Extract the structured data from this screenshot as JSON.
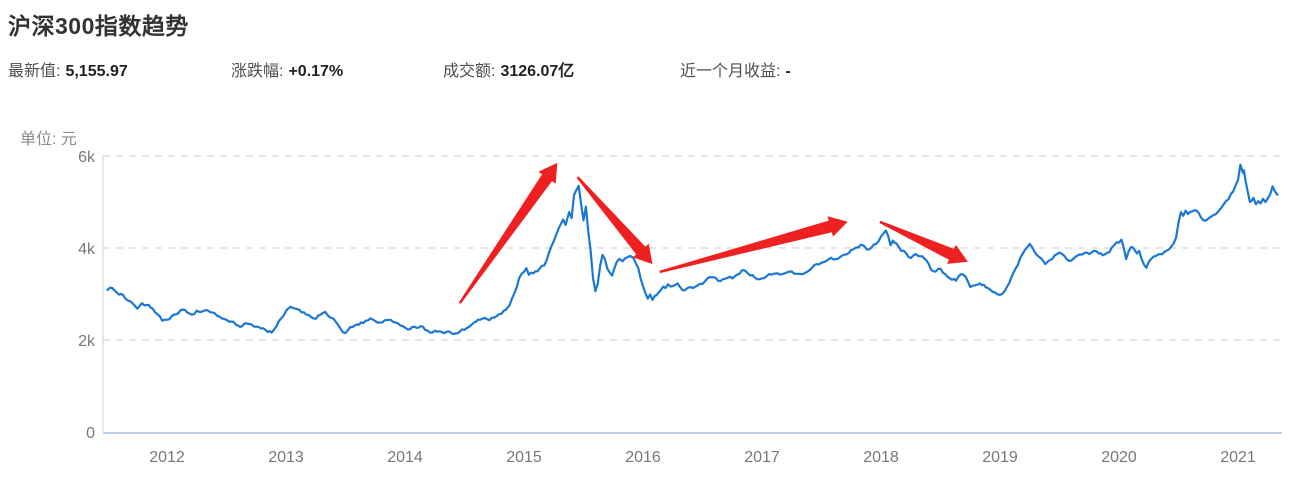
{
  "page": {
    "title": "沪深300指数趋势"
  },
  "stats": [
    {
      "label": "最新值:",
      "value": "5,155.97"
    },
    {
      "label": "涨跌幅:",
      "value": "+0.17%"
    },
    {
      "label": "成交额:",
      "value": "3126.07亿"
    },
    {
      "label": "近一个月收益:",
      "value": "-"
    }
  ],
  "chart_data": {
    "type": "line",
    "title": "沪深300指数趋势",
    "ylabel": "单位: 元",
    "xlabel": "",
    "legend": [],
    "grid": true,
    "xlim": [
      2011.5,
      2021.35
    ],
    "ylim": [
      0,
      6000
    ],
    "x_ticks": [
      "2012",
      "2013",
      "2014",
      "2015",
      "2016",
      "2017",
      "2018",
      "2019",
      "2020",
      "2021"
    ],
    "y_ticks": [
      {
        "value": 0,
        "label": "0"
      },
      {
        "value": 2000,
        "label": "2k"
      },
      {
        "value": 4000,
        "label": "4k"
      },
      {
        "value": 6000,
        "label": "6k"
      }
    ],
    "line_color": "#1b78d2",
    "grid_color": "#cdcdcd",
    "axis_color": "#d0d0d0",
    "baseline_color": "#bcd0e8",
    "tick_color": "#76787b",
    "arrow_color": "#ee2021",
    "series": [
      {
        "name": "沪深300",
        "points": [
          [
            2011.5,
            3090
          ],
          [
            2011.54,
            3130
          ],
          [
            2011.58,
            3030
          ],
          [
            2011.63,
            2980
          ],
          [
            2011.67,
            2860
          ],
          [
            2011.71,
            2800
          ],
          [
            2011.75,
            2680
          ],
          [
            2011.79,
            2800
          ],
          [
            2011.83,
            2760
          ],
          [
            2011.88,
            2680
          ],
          [
            2011.92,
            2560
          ],
          [
            2011.96,
            2420
          ],
          [
            2012.0,
            2440
          ],
          [
            2012.04,
            2520
          ],
          [
            2012.08,
            2560
          ],
          [
            2012.13,
            2660
          ],
          [
            2012.17,
            2600
          ],
          [
            2012.21,
            2550
          ],
          [
            2012.25,
            2640
          ],
          [
            2012.29,
            2610
          ],
          [
            2012.33,
            2650
          ],
          [
            2012.38,
            2600
          ],
          [
            2012.42,
            2530
          ],
          [
            2012.46,
            2470
          ],
          [
            2012.5,
            2440
          ],
          [
            2012.54,
            2400
          ],
          [
            2012.58,
            2330
          ],
          [
            2012.63,
            2300
          ],
          [
            2012.67,
            2360
          ],
          [
            2012.71,
            2340
          ],
          [
            2012.75,
            2290
          ],
          [
            2012.79,
            2250
          ],
          [
            2012.83,
            2210
          ],
          [
            2012.88,
            2160
          ],
          [
            2012.92,
            2300
          ],
          [
            2012.96,
            2470
          ],
          [
            2013.0,
            2630
          ],
          [
            2013.04,
            2720
          ],
          [
            2013.08,
            2680
          ],
          [
            2013.13,
            2600
          ],
          [
            2013.17,
            2550
          ],
          [
            2013.21,
            2500
          ],
          [
            2013.25,
            2460
          ],
          [
            2013.29,
            2550
          ],
          [
            2013.33,
            2610
          ],
          [
            2013.38,
            2480
          ],
          [
            2013.42,
            2390
          ],
          [
            2013.46,
            2240
          ],
          [
            2013.5,
            2150
          ],
          [
            2013.54,
            2280
          ],
          [
            2013.58,
            2320
          ],
          [
            2013.63,
            2380
          ],
          [
            2013.67,
            2420
          ],
          [
            2013.71,
            2470
          ],
          [
            2013.75,
            2410
          ],
          [
            2013.79,
            2380
          ],
          [
            2013.83,
            2430
          ],
          [
            2013.88,
            2440
          ],
          [
            2013.92,
            2380
          ],
          [
            2013.96,
            2320
          ],
          [
            2014.0,
            2270
          ],
          [
            2014.04,
            2230
          ],
          [
            2014.08,
            2290
          ],
          [
            2014.13,
            2300
          ],
          [
            2014.17,
            2220
          ],
          [
            2014.21,
            2160
          ],
          [
            2014.25,
            2200
          ],
          [
            2014.29,
            2190
          ],
          [
            2014.33,
            2150
          ],
          [
            2014.38,
            2170
          ],
          [
            2014.42,
            2140
          ],
          [
            2014.46,
            2180
          ],
          [
            2014.5,
            2220
          ],
          [
            2014.54,
            2290
          ],
          [
            2014.58,
            2380
          ],
          [
            2014.63,
            2440
          ],
          [
            2014.67,
            2480
          ],
          [
            2014.71,
            2430
          ],
          [
            2014.75,
            2490
          ],
          [
            2014.79,
            2560
          ],
          [
            2014.83,
            2640
          ],
          [
            2014.88,
            2760
          ],
          [
            2014.92,
            3020
          ],
          [
            2014.96,
            3350
          ],
          [
            2015.0,
            3480
          ],
          [
            2015.02,
            3560
          ],
          [
            2015.04,
            3420
          ],
          [
            2015.08,
            3450
          ],
          [
            2015.13,
            3550
          ],
          [
            2015.17,
            3620
          ],
          [
            2015.21,
            3900
          ],
          [
            2015.25,
            4150
          ],
          [
            2015.29,
            4420
          ],
          [
            2015.33,
            4620
          ],
          [
            2015.35,
            4500
          ],
          [
            2015.38,
            4780
          ],
          [
            2015.4,
            4650
          ],
          [
            2015.42,
            5150
          ],
          [
            2015.44,
            5260
          ],
          [
            2015.46,
            5353
          ],
          [
            2015.48,
            4950
          ],
          [
            2015.5,
            4600
          ],
          [
            2015.52,
            4900
          ],
          [
            2015.54,
            4350
          ],
          [
            2015.56,
            3950
          ],
          [
            2015.58,
            3350
          ],
          [
            2015.6,
            3060
          ],
          [
            2015.62,
            3230
          ],
          [
            2015.64,
            3620
          ],
          [
            2015.66,
            3850
          ],
          [
            2015.68,
            3760
          ],
          [
            2015.7,
            3550
          ],
          [
            2015.72,
            3470
          ],
          [
            2015.74,
            3400
          ],
          [
            2015.76,
            3560
          ],
          [
            2015.78,
            3700
          ],
          [
            2015.8,
            3760
          ],
          [
            2015.83,
            3710
          ],
          [
            2015.86,
            3790
          ],
          [
            2015.89,
            3830
          ],
          [
            2015.92,
            3780
          ],
          [
            2015.94,
            3660
          ],
          [
            2015.96,
            3570
          ],
          [
            2015.98,
            3340
          ],
          [
            2016.0,
            3170
          ],
          [
            2016.02,
            3020
          ],
          [
            2016.04,
            2900
          ],
          [
            2016.06,
            2990
          ],
          [
            2016.08,
            2870
          ],
          [
            2016.1,
            2960
          ],
          [
            2016.13,
            3030
          ],
          [
            2016.15,
            3090
          ],
          [
            2016.17,
            3160
          ],
          [
            2016.19,
            3130
          ],
          [
            2016.21,
            3210
          ],
          [
            2016.25,
            3170
          ],
          [
            2016.29,
            3230
          ],
          [
            2016.33,
            3090
          ],
          [
            2016.38,
            3140
          ],
          [
            2016.42,
            3130
          ],
          [
            2016.46,
            3190
          ],
          [
            2016.5,
            3220
          ],
          [
            2016.54,
            3340
          ],
          [
            2016.58,
            3360
          ],
          [
            2016.63,
            3290
          ],
          [
            2016.67,
            3320
          ],
          [
            2016.71,
            3350
          ],
          [
            2016.75,
            3340
          ],
          [
            2016.79,
            3420
          ],
          [
            2016.83,
            3510
          ],
          [
            2016.88,
            3450
          ],
          [
            2016.92,
            3410
          ],
          [
            2016.96,
            3320
          ],
          [
            2017.0,
            3340
          ],
          [
            2017.04,
            3390
          ],
          [
            2017.08,
            3420
          ],
          [
            2017.13,
            3450
          ],
          [
            2017.17,
            3430
          ],
          [
            2017.21,
            3470
          ],
          [
            2017.25,
            3490
          ],
          [
            2017.29,
            3440
          ],
          [
            2017.33,
            3430
          ],
          [
            2017.38,
            3480
          ],
          [
            2017.42,
            3570
          ],
          [
            2017.46,
            3650
          ],
          [
            2017.5,
            3680
          ],
          [
            2017.54,
            3720
          ],
          [
            2017.58,
            3790
          ],
          [
            2017.63,
            3760
          ],
          [
            2017.67,
            3830
          ],
          [
            2017.71,
            3860
          ],
          [
            2017.75,
            3960
          ],
          [
            2017.79,
            4010
          ],
          [
            2017.83,
            4070
          ],
          [
            2017.88,
            3970
          ],
          [
            2017.92,
            4010
          ],
          [
            2017.96,
            4090
          ],
          [
            2018.0,
            4250
          ],
          [
            2018.04,
            4380
          ],
          [
            2018.06,
            4270
          ],
          [
            2018.08,
            4060
          ],
          [
            2018.1,
            4160
          ],
          [
            2018.13,
            4100
          ],
          [
            2018.17,
            3940
          ],
          [
            2018.21,
            3890
          ],
          [
            2018.25,
            3780
          ],
          [
            2018.29,
            3870
          ],
          [
            2018.33,
            3820
          ],
          [
            2018.38,
            3740
          ],
          [
            2018.42,
            3530
          ],
          [
            2018.46,
            3490
          ],
          [
            2018.5,
            3550
          ],
          [
            2018.54,
            3430
          ],
          [
            2018.58,
            3340
          ],
          [
            2018.63,
            3290
          ],
          [
            2018.67,
            3430
          ],
          [
            2018.71,
            3380
          ],
          [
            2018.75,
            3150
          ],
          [
            2018.79,
            3190
          ],
          [
            2018.83,
            3230
          ],
          [
            2018.88,
            3150
          ],
          [
            2018.92,
            3090
          ],
          [
            2018.96,
            3030
          ],
          [
            2019.0,
            2980
          ],
          [
            2019.04,
            3070
          ],
          [
            2019.08,
            3250
          ],
          [
            2019.13,
            3550
          ],
          [
            2019.17,
            3780
          ],
          [
            2019.21,
            3960
          ],
          [
            2019.25,
            4090
          ],
          [
            2019.27,
            4020
          ],
          [
            2019.29,
            3920
          ],
          [
            2019.33,
            3800
          ],
          [
            2019.38,
            3650
          ],
          [
            2019.42,
            3740
          ],
          [
            2019.46,
            3840
          ],
          [
            2019.5,
            3900
          ],
          [
            2019.54,
            3830
          ],
          [
            2019.58,
            3720
          ],
          [
            2019.63,
            3800
          ],
          [
            2019.67,
            3860
          ],
          [
            2019.71,
            3890
          ],
          [
            2019.75,
            3870
          ],
          [
            2019.79,
            3940
          ],
          [
            2019.83,
            3880
          ],
          [
            2019.88,
            3860
          ],
          [
            2019.92,
            3910
          ],
          [
            2019.96,
            4060
          ],
          [
            2020.0,
            4120
          ],
          [
            2020.02,
            4180
          ],
          [
            2020.04,
            4000
          ],
          [
            2020.06,
            3760
          ],
          [
            2020.08,
            3920
          ],
          [
            2020.1,
            4020
          ],
          [
            2020.13,
            3960
          ],
          [
            2020.15,
            3880
          ],
          [
            2020.17,
            3940
          ],
          [
            2020.19,
            3760
          ],
          [
            2020.21,
            3640
          ],
          [
            2020.23,
            3570
          ],
          [
            2020.25,
            3700
          ],
          [
            2020.27,
            3760
          ],
          [
            2020.29,
            3810
          ],
          [
            2020.33,
            3860
          ],
          [
            2020.38,
            3910
          ],
          [
            2020.42,
            3970
          ],
          [
            2020.46,
            4100
          ],
          [
            2020.48,
            4230
          ],
          [
            2020.5,
            4550
          ],
          [
            2020.52,
            4780
          ],
          [
            2020.54,
            4700
          ],
          [
            2020.56,
            4810
          ],
          [
            2020.58,
            4740
          ],
          [
            2020.63,
            4820
          ],
          [
            2020.67,
            4760
          ],
          [
            2020.69,
            4660
          ],
          [
            2020.71,
            4600
          ],
          [
            2020.75,
            4640
          ],
          [
            2020.79,
            4710
          ],
          [
            2020.83,
            4780
          ],
          [
            2020.88,
            4950
          ],
          [
            2020.92,
            5060
          ],
          [
            2020.96,
            5230
          ],
          [
            2020.98,
            5360
          ],
          [
            2021.0,
            5480
          ],
          [
            2021.02,
            5810
          ],
          [
            2021.04,
            5640
          ],
          [
            2021.05,
            5690
          ],
          [
            2021.08,
            5250
          ],
          [
            2021.1,
            5000
          ],
          [
            2021.13,
            5090
          ],
          [
            2021.15,
            4950
          ],
          [
            2021.17,
            5020
          ],
          [
            2021.19,
            4970
          ],
          [
            2021.21,
            5070
          ],
          [
            2021.23,
            5000
          ],
          [
            2021.25,
            5080
          ],
          [
            2021.27,
            5160
          ],
          [
            2021.29,
            5340
          ],
          [
            2021.31,
            5230
          ],
          [
            2021.33,
            5156
          ]
        ]
      }
    ],
    "arrows": [
      {
        "from": [
          2014.46,
          2800
        ],
        "to": [
          2015.28,
          5850
        ]
      },
      {
        "from": [
          2015.45,
          5540
        ],
        "to": [
          2016.08,
          3650
        ]
      },
      {
        "from": [
          2016.14,
          3480
        ],
        "to": [
          2017.72,
          4570
        ]
      },
      {
        "from": [
          2017.99,
          4570
        ],
        "to": [
          2018.73,
          3700
        ]
      }
    ]
  }
}
